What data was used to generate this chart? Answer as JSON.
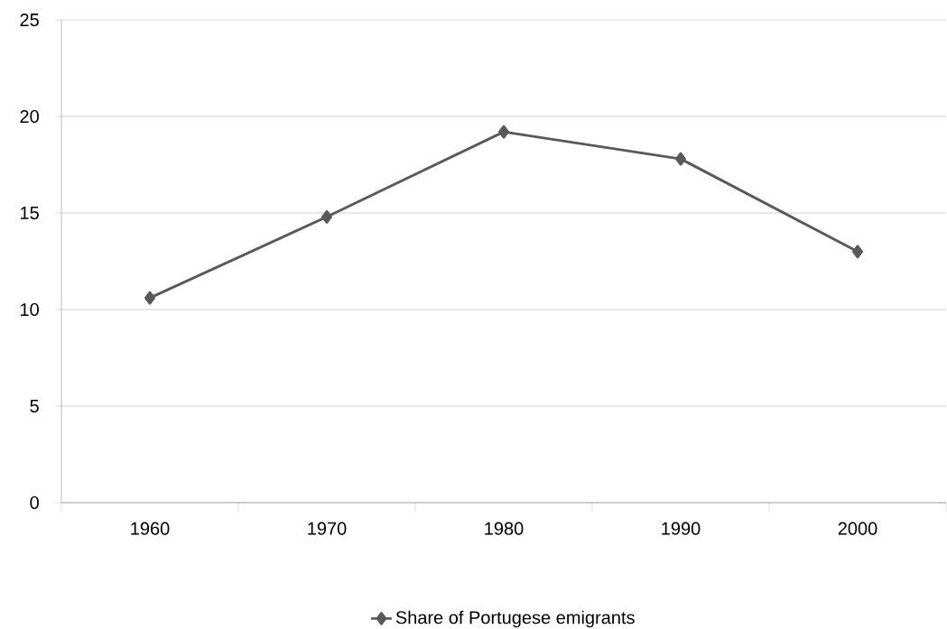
{
  "chart_data": {
    "type": "line",
    "categories": [
      "1960",
      "1970",
      "1980",
      "1990",
      "2000"
    ],
    "series": [
      {
        "name": "Share of Portugese emigrants",
        "color": "#595959",
        "values": [
          10.6,
          14.8,
          19.2,
          17.8,
          13.0
        ]
      }
    ],
    "ylim": [
      0,
      25
    ],
    "yticks": [
      0,
      5,
      10,
      15,
      20,
      25
    ],
    "grid": "y",
    "legend": "bottom",
    "marker": "diamond",
    "line_style": "solid"
  }
}
